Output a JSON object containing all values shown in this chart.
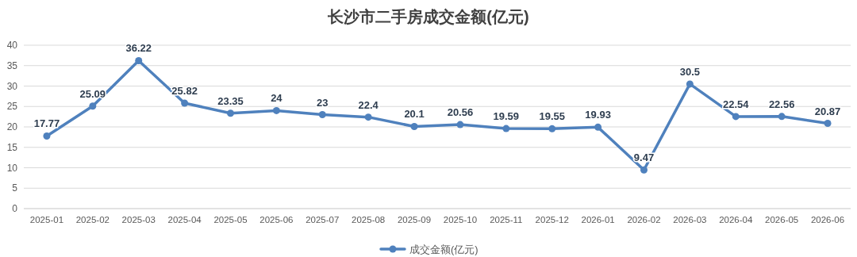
{
  "chart_data": {
    "type": "line",
    "title": "长沙市二手房成交金额(亿元)",
    "categories": [
      "2025-01",
      "2025-02",
      "2025-03",
      "2025-04",
      "2025-05",
      "2025-06",
      "2025-07",
      "2025-08",
      "2025-09",
      "2025-10",
      "2025-11",
      "2025-12",
      "2026-01",
      "2026-02",
      "2026-03",
      "2026-04",
      "2026-05",
      "2026-06"
    ],
    "series": [
      {
        "name": "成交金额(亿元)",
        "color": "#4f81bd",
        "values": [
          17.77,
          25.09,
          36.22,
          25.82,
          23.35,
          24,
          23,
          22.4,
          20.1,
          20.56,
          19.59,
          19.55,
          19.93,
          9.47,
          30.5,
          22.54,
          22.56,
          20.87
        ]
      }
    ],
    "ylim": [
      0,
      40
    ],
    "yticks": [
      0,
      5,
      10,
      15,
      20,
      25,
      30,
      35,
      40
    ],
    "grid": "y",
    "legend": "bottom",
    "marker": "circle",
    "line_style": "solid",
    "data_labels": true
  }
}
